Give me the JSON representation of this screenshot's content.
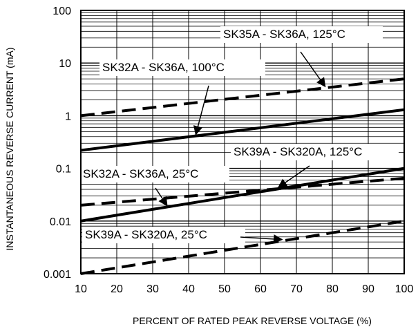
{
  "chart_data": {
    "type": "line",
    "xlabel": "PERCENT OF RATED PEAK REVERSE VOLTAGE (%)",
    "ylabel": "INSTANTANEOUS REVERSE CURRENT (mA)",
    "xlim": [
      10,
      100
    ],
    "ylim": [
      0.001,
      100
    ],
    "y_scale": "log",
    "grid": true,
    "x_ticks": [
      "10",
      "20",
      "30",
      "40",
      "50",
      "60",
      "70",
      "80",
      "90",
      "100"
    ],
    "y_ticks": [
      "0.001",
      "0.01",
      "0.1",
      "1",
      "10",
      "100"
    ],
    "series": [
      {
        "name": "SK35A - SK36A, 125°C",
        "style": "dashed",
        "x": [
          10,
          100
        ],
        "y": [
          1.0,
          5.0
        ]
      },
      {
        "name": "SK32A - SK36A, 100°C",
        "style": "solid",
        "x": [
          10,
          100
        ],
        "y": [
          0.22,
          1.3
        ]
      },
      {
        "name": "SK39A - SK320A, 125°C",
        "style": "dashed",
        "x": [
          10,
          100
        ],
        "y": [
          0.02,
          0.065
        ]
      },
      {
        "name": "SK32A - SK36A, 25°C",
        "style": "solid",
        "x": [
          10,
          100
        ],
        "y": [
          0.01,
          0.1
        ]
      },
      {
        "name": "SK39A - SK320A, 25°C",
        "style": "dashed",
        "x": [
          10,
          100
        ],
        "y": [
          0.001,
          0.01
        ]
      }
    ],
    "annotations": [
      {
        "text": "SK35A - SK36A, 125°C",
        "series": 0
      },
      {
        "text": "SK32A - SK36A, 100°C",
        "series": 1
      },
      {
        "text": "SK39A - SK320A, 125°C",
        "series": 2
      },
      {
        "text": "SK32A - SK36A, 25°C",
        "series": 3
      },
      {
        "text": "SK39A - SK320A, 25°C",
        "series": 4
      }
    ]
  }
}
